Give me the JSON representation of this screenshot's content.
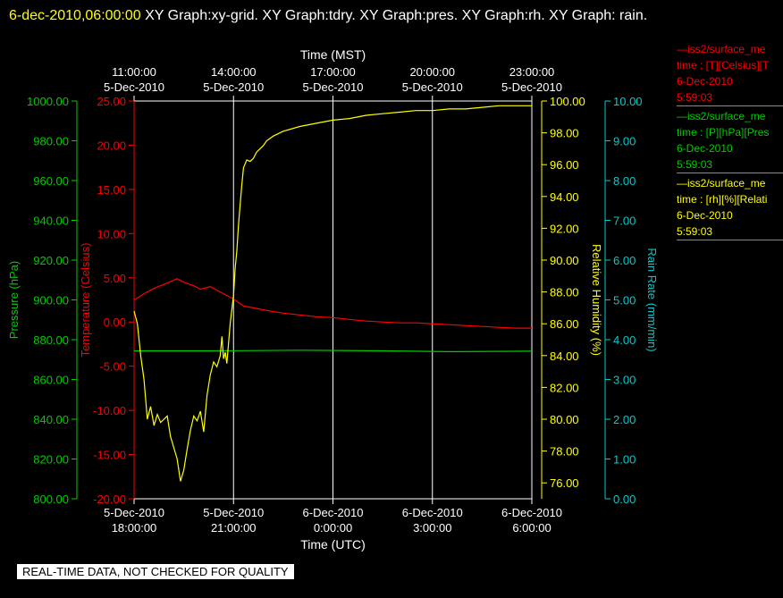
{
  "header": {
    "datetime": "6-dec-2010,06:00:00",
    "title": " XY Graph:xy-grid.  XY Graph:tdry.  XY Graph:pres.  XY Graph:rh.  XY Graph: rain."
  },
  "colors": {
    "temperature": "#ff0000",
    "pressure": "#00cc00",
    "humidity": "#ffff00",
    "rain": "#00cccc",
    "grid": "#ffffff",
    "text": "#ffffff"
  },
  "legend": [
    {
      "lines": [
        "—iss2/surface_me",
        "time : [T][Celsius][T",
        "6-Dec-2010",
        "5:59:03"
      ],
      "color": "#ff0000"
    },
    {
      "lines": [
        "—iss2/surface_me",
        "time : [P][hPa][Pres",
        "6-Dec-2010",
        "5:59:03"
      ],
      "color": "#00cc00"
    },
    {
      "lines": [
        "—iss2/surface_me",
        "time : [rh][%][Relati",
        "6-Dec-2010",
        "5:59:03"
      ],
      "color": "#ffff00"
    }
  ],
  "footer": "REAL-TIME DATA, NOT CHECKED FOR QUALITY",
  "chart_data": {
    "type": "line",
    "x_bottom": {
      "label": "Time (UTC)",
      "ticks": [
        {
          "h": 0,
          "date": "5-Dec-2010",
          "time": "18:00:00"
        },
        {
          "h": 3,
          "date": "5-Dec-2010",
          "time": "21:00:00"
        },
        {
          "h": 6,
          "date": "6-Dec-2010",
          "time": "0:00:00"
        },
        {
          "h": 9,
          "date": "6-Dec-2010",
          "time": "3:00:00"
        },
        {
          "h": 12,
          "date": "6-Dec-2010",
          "time": "6:00:00"
        }
      ]
    },
    "x_top": {
      "label": "Time (MST)",
      "ticks": [
        {
          "h": 0,
          "date": "5-Dec-2010",
          "time": "11:00:00"
        },
        {
          "h": 3,
          "date": "5-Dec-2010",
          "time": "14:00:00"
        },
        {
          "h": 6,
          "date": "5-Dec-2010",
          "time": "17:00:00"
        },
        {
          "h": 9,
          "date": "5-Dec-2010",
          "time": "20:00:00"
        },
        {
          "h": 12,
          "date": "5-Dec-2010",
          "time": "23:00:00"
        }
      ]
    },
    "axes": {
      "pressure": {
        "label": "Pressure (hPa)",
        "ylim": [
          800,
          1000
        ],
        "ticks": [
          "800.00",
          "820.00",
          "840.00",
          "860.00",
          "880.00",
          "900.00",
          "920.00",
          "940.00",
          "960.00",
          "980.00",
          "1000.00"
        ]
      },
      "temperature": {
        "label": "Temperature (Celsius)",
        "ylim": [
          -20,
          25
        ],
        "ticks": [
          "-20.00",
          "-15.00",
          "-10.00",
          "-5.00",
          "0.00",
          "5.00",
          "10.00",
          "15.00",
          "20.00",
          "25.00"
        ]
      },
      "humidity": {
        "label": "Relative Humidity (%)",
        "ylim": [
          75,
          100
        ],
        "ticks": [
          "76.00",
          "78.00",
          "80.00",
          "82.00",
          "84.00",
          "86.00",
          "88.00",
          "90.00",
          "92.00",
          "94.00",
          "96.00",
          "98.00",
          "100.00"
        ]
      },
      "rain": {
        "label": "Rain Rate (mm/min)",
        "ylim": [
          0,
          10
        ],
        "ticks": [
          "0.00",
          "1.00",
          "2.00",
          "3.00",
          "4.00",
          "5.00",
          "6.00",
          "7.00",
          "8.00",
          "9.00",
          "10.00"
        ]
      }
    },
    "series": [
      {
        "name": "iss2/surface_me T",
        "axis": "temperature",
        "x": [
          0,
          0.3,
          0.6,
          1.0,
          1.3,
          1.5,
          1.8,
          2.0,
          2.3,
          2.6,
          2.8,
          3.0,
          3.3,
          3.6,
          4.0,
          4.5,
          5.0,
          5.5,
          6.0,
          6.5,
          7.0,
          7.5,
          8.0,
          8.5,
          9.0,
          9.5,
          10.0,
          10.5,
          11.0,
          11.5,
          12.0
        ],
        "y": [
          2.5,
          3.2,
          3.8,
          4.4,
          4.9,
          4.5,
          4.1,
          3.7,
          4.0,
          3.4,
          3.0,
          2.6,
          1.8,
          1.6,
          1.3,
          1.0,
          0.8,
          0.6,
          0.5,
          0.3,
          0.1,
          0.0,
          -0.1,
          -0.1,
          -0.2,
          -0.3,
          -0.4,
          -0.5,
          -0.6,
          -0.7,
          -0.7
        ]
      },
      {
        "name": "iss2/surface_me P",
        "axis": "pressure",
        "x": [
          0,
          2.5,
          5.0,
          7.5,
          9.5,
          12.0
        ],
        "y": [
          874.4,
          874.4,
          874.7,
          874.4,
          874.0,
          874.2
        ]
      },
      {
        "name": "iss2/surface_me rh",
        "axis": "humidity",
        "x": [
          0,
          0.1,
          0.2,
          0.3,
          0.4,
          0.5,
          0.6,
          0.7,
          0.8,
          0.9,
          1.0,
          1.1,
          1.2,
          1.3,
          1.4,
          1.5,
          1.6,
          1.7,
          1.8,
          1.9,
          2.0,
          2.1,
          2.2,
          2.3,
          2.4,
          2.5,
          2.6,
          2.65,
          2.7,
          2.75,
          2.8,
          2.9,
          3.0,
          3.05,
          3.1,
          3.15,
          3.2,
          3.25,
          3.3,
          3.4,
          3.5,
          3.6,
          3.7,
          3.8,
          3.9,
          4.0,
          4.2,
          4.5,
          5.0,
          5.5,
          6.0,
          6.5,
          7.0,
          7.5,
          8.0,
          8.5,
          9.0,
          9.5,
          10.0,
          10.5,
          11.0,
          11.5,
          12.0
        ],
        "y": [
          86.8,
          86.0,
          84.0,
          82.5,
          80.0,
          80.8,
          79.6,
          80.3,
          79.8,
          80.0,
          80.2,
          78.9,
          78.2,
          77.5,
          76.1,
          76.8,
          78.1,
          79.3,
          80.2,
          79.9,
          80.5,
          79.2,
          81.5,
          82.8,
          83.6,
          83.3,
          84.0,
          85.2,
          83.8,
          84.2,
          83.5,
          86.0,
          87.8,
          89.5,
          90.6,
          92.2,
          93.5,
          94.7,
          95.8,
          96.3,
          96.2,
          96.4,
          96.8,
          97.0,
          97.2,
          97.5,
          97.8,
          98.1,
          98.4,
          98.6,
          98.8,
          98.9,
          99.1,
          99.2,
          99.3,
          99.4,
          99.4,
          99.5,
          99.5,
          99.6,
          99.7,
          99.7,
          99.7
        ]
      }
    ],
    "grid": true
  }
}
